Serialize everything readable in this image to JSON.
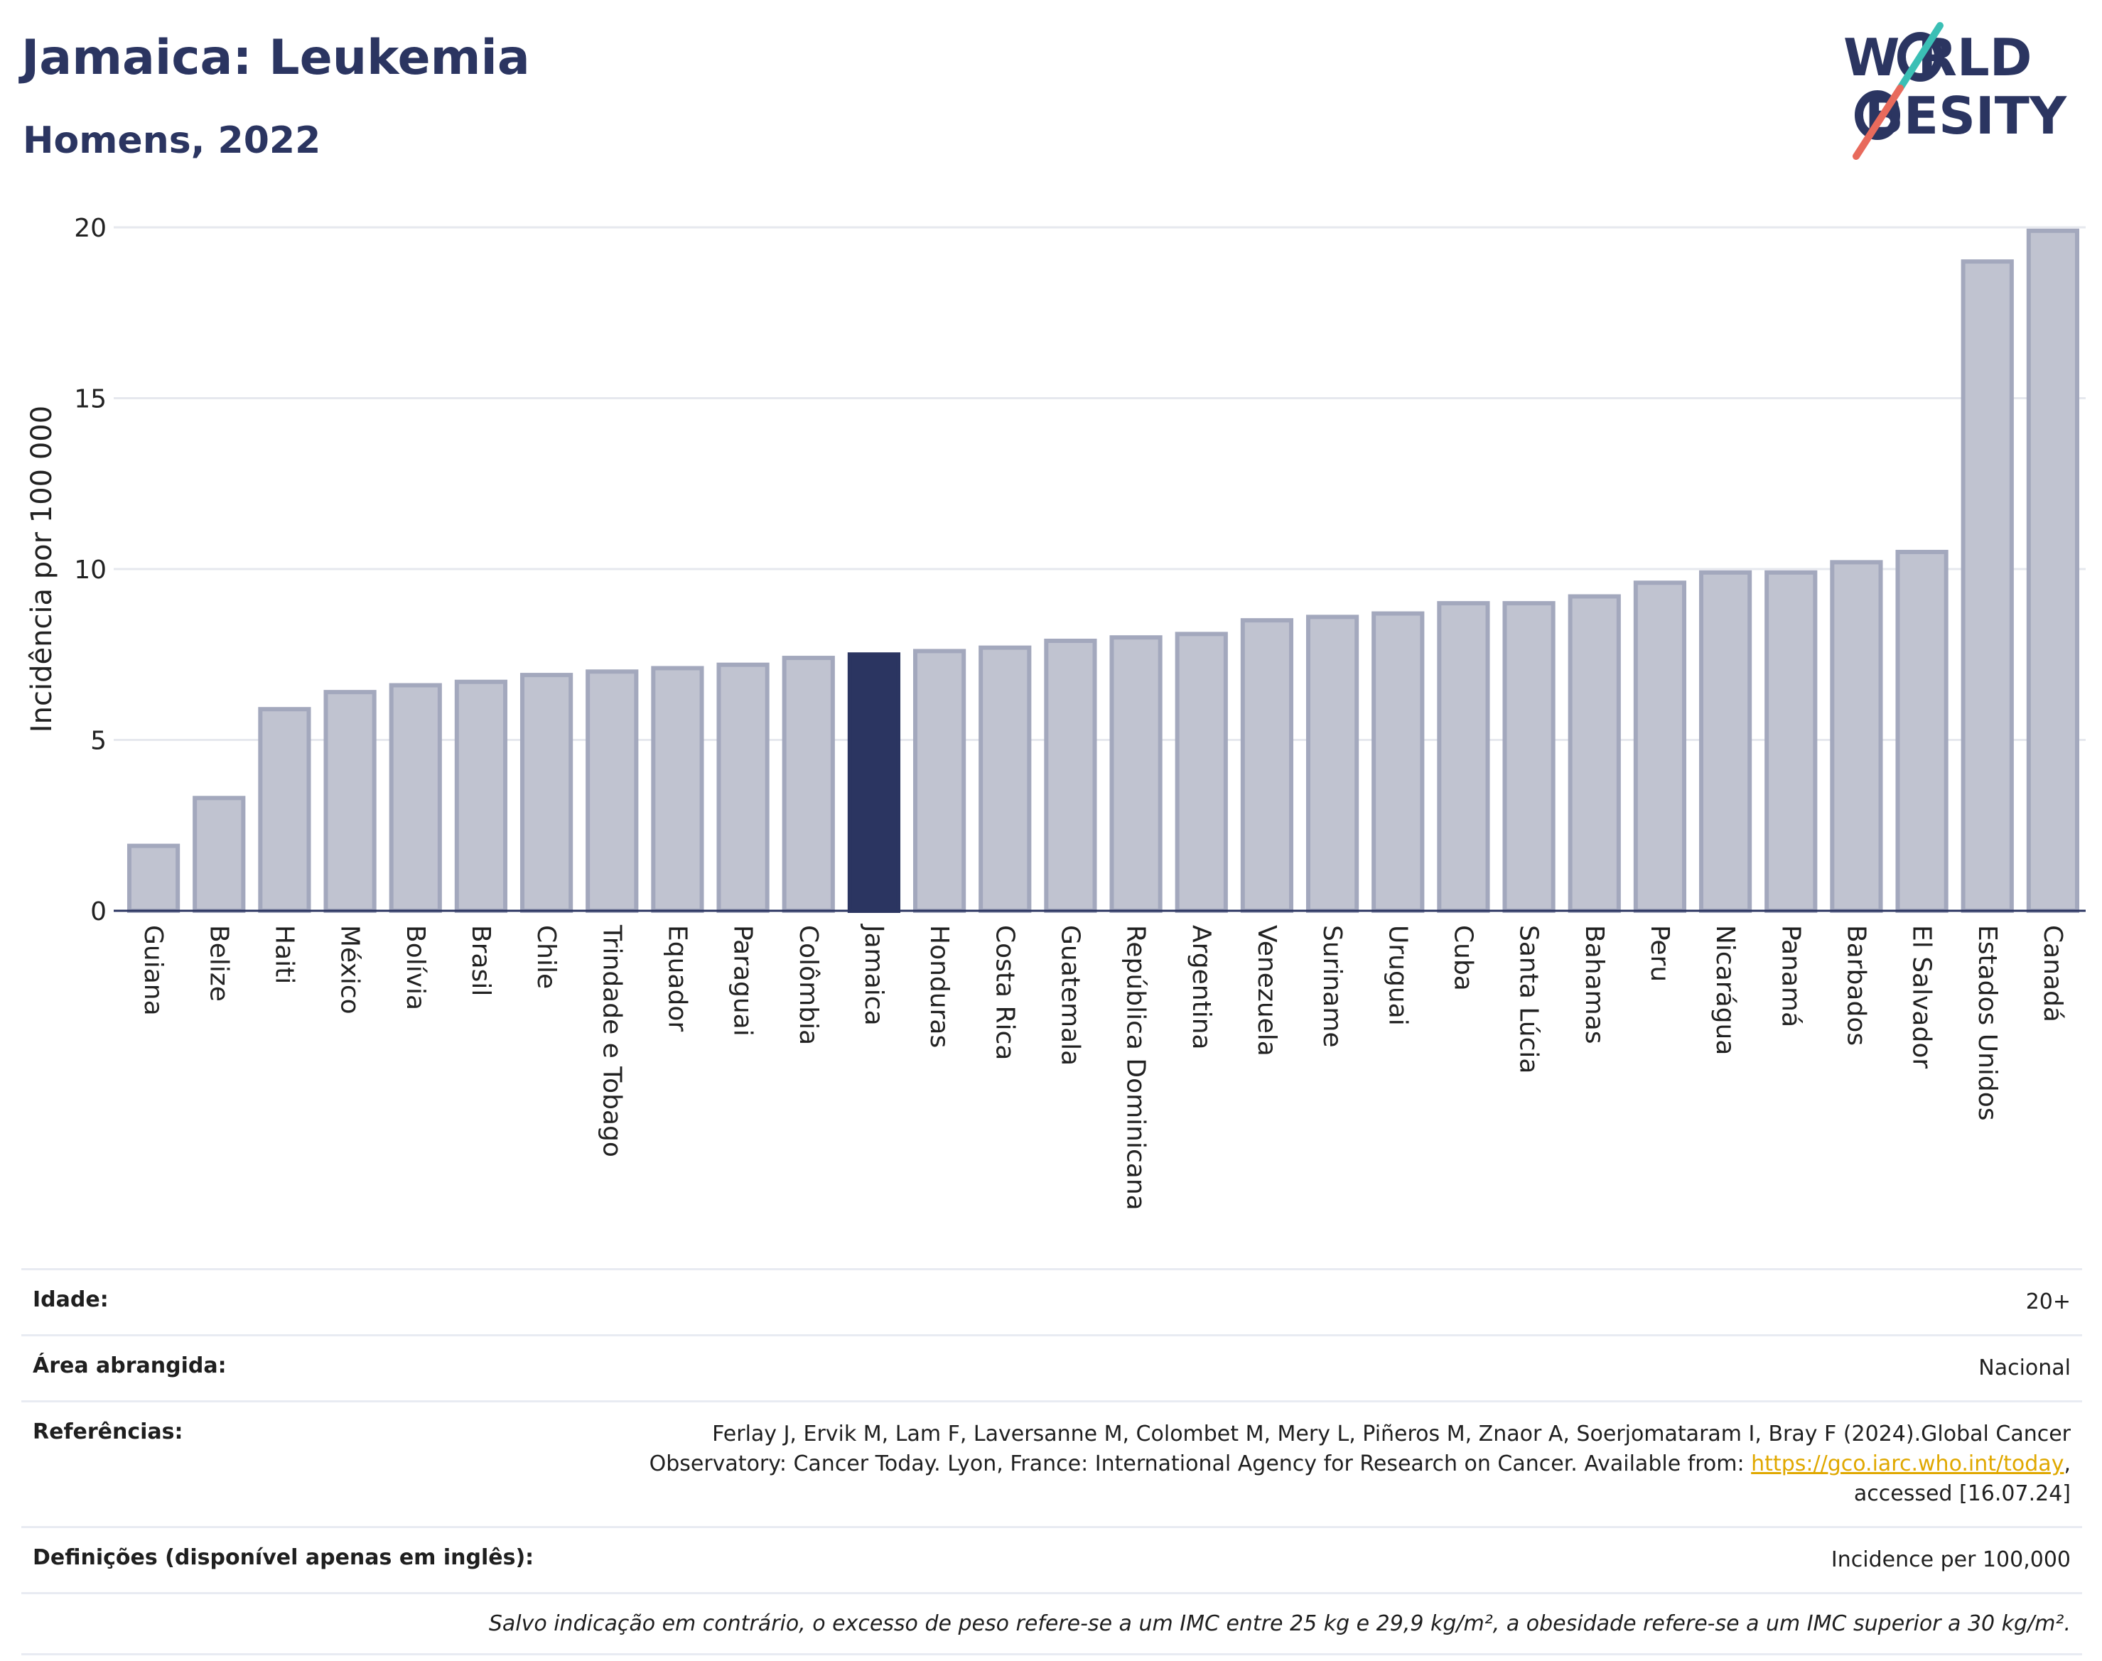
{
  "header": {
    "title": "Jamaica: Leukemia",
    "subtitle": "Homens, 2022"
  },
  "logo": {
    "line1": "W RLD",
    "line2": "BESITY",
    "text": "WORLD OBESITY",
    "colors": {
      "navy": "#2b3561",
      "teal": "#3bbfb5",
      "coral": "#e86a5c"
    }
  },
  "chart_data": {
    "type": "bar",
    "ylabel": "Incidência por 100 000",
    "ylim": [
      0,
      20
    ],
    "yticks": [
      0,
      5,
      10,
      15,
      20
    ],
    "grid": true,
    "highlight": "Jamaica",
    "colors": {
      "bar": "#c0c3d0",
      "bar_edge": "#a3a8bd",
      "highlight": "#2b3561"
    },
    "categories": [
      "Guiana",
      "Belize",
      "Haiti",
      "México",
      "Bolívia",
      "Brasil",
      "Chile",
      "Trindade e Tobago",
      "Equador",
      "Paraguai",
      "Colômbia",
      "Jamaica",
      "Honduras",
      "Costa Rica",
      "Guatemala",
      "República Dominicana",
      "Argentina",
      "Venezuela",
      "Suriname",
      "Uruguai",
      "Cuba",
      "Santa Lúcia",
      "Bahamas",
      "Peru",
      "Nicarágua",
      "Panamá",
      "Barbados",
      "El Salvador",
      "Estados Unidos",
      "Canadá"
    ],
    "values": [
      1.9,
      3.3,
      5.9,
      6.4,
      6.6,
      6.7,
      6.9,
      7.0,
      7.1,
      7.2,
      7.4,
      7.5,
      7.6,
      7.7,
      7.9,
      8.0,
      8.1,
      8.5,
      8.6,
      8.7,
      9.0,
      9.0,
      9.2,
      9.6,
      9.9,
      9.9,
      10.2,
      10.5,
      19.0,
      19.9
    ]
  },
  "meta": {
    "age_label": "Idade:",
    "age_value": "20+",
    "area_label": "Área abrangida:",
    "area_value": "Nacional",
    "ref_label": "Referências:",
    "ref_text_1": "Ferlay J, Ervik M, Lam F, Laversanne M, Colombet M, Mery L, Piñeros M, Znaor A, Soerjomataram I, Bray F (2024).Global Cancer Observatory: Cancer Today. Lyon, France: International Agency for Research on Cancer. Available from: ",
    "ref_link": "https://gco.iarc.who.int/today",
    "ref_text_2": ", accessed [16.07.24]",
    "def_label": "Definições (disponível apenas em inglês):",
    "def_value": "Incidence per 100,000",
    "note": "Salvo indicação em contrário, o excesso de peso refere-se a um IMC entre 25 kg e 29,9 kg/m², a obesidade refere-se a um IMC superior a 30 kg/m²."
  }
}
